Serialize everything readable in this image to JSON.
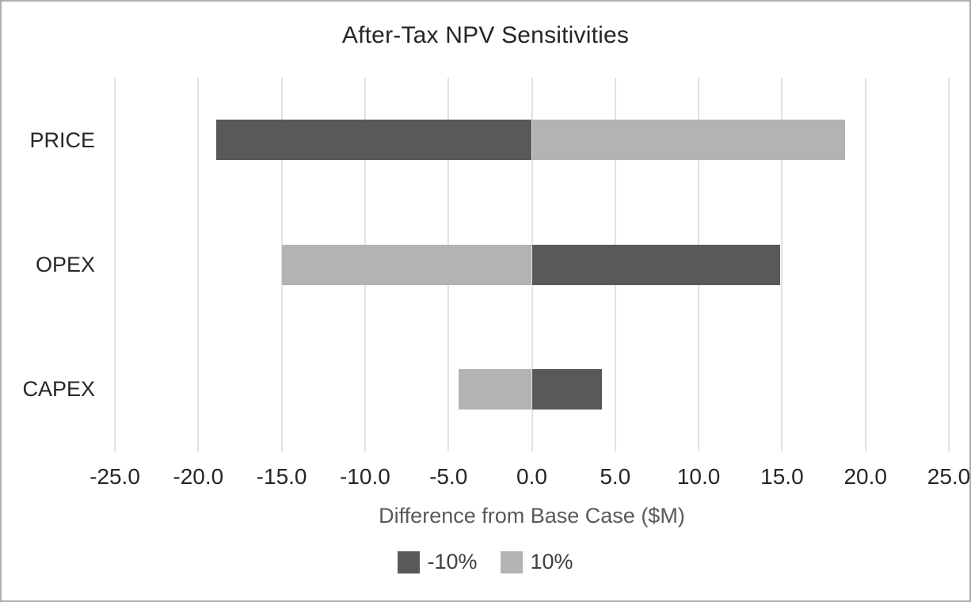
{
  "chart_data": {
    "type": "bar",
    "orientation": "horizontal",
    "title": "After-Tax NPV Sensitivities",
    "xlabel": "Difference from Base Case ($M)",
    "categories": [
      "PRICE",
      "OPEX",
      "CAPEX"
    ],
    "series": [
      {
        "name": "-10%",
        "color": "#595959",
        "values": [
          -18.9,
          14.9,
          4.2
        ]
      },
      {
        "name": "10%",
        "color": "#b3b3b3",
        "values": [
          18.8,
          -15.0,
          -4.4
        ]
      }
    ],
    "xlim": [
      -25.0,
      25.0
    ],
    "xticks": [
      -25.0,
      -20.0,
      -15.0,
      -10.0,
      -5.0,
      0.0,
      5.0,
      10.0,
      15.0,
      20.0,
      25.0
    ],
    "xtick_labels": [
      "-25.0",
      "-20.0",
      "-15.0",
      "-10.0",
      "-5.0",
      "0.0",
      "5.0",
      "10.0",
      "15.0",
      "20.0",
      "25.0"
    ],
    "grid": true,
    "gridline_color": "#e2e2e2",
    "legend_position": "bottom",
    "background_color": "#ffffff",
    "border_color": "#aeaeae"
  }
}
